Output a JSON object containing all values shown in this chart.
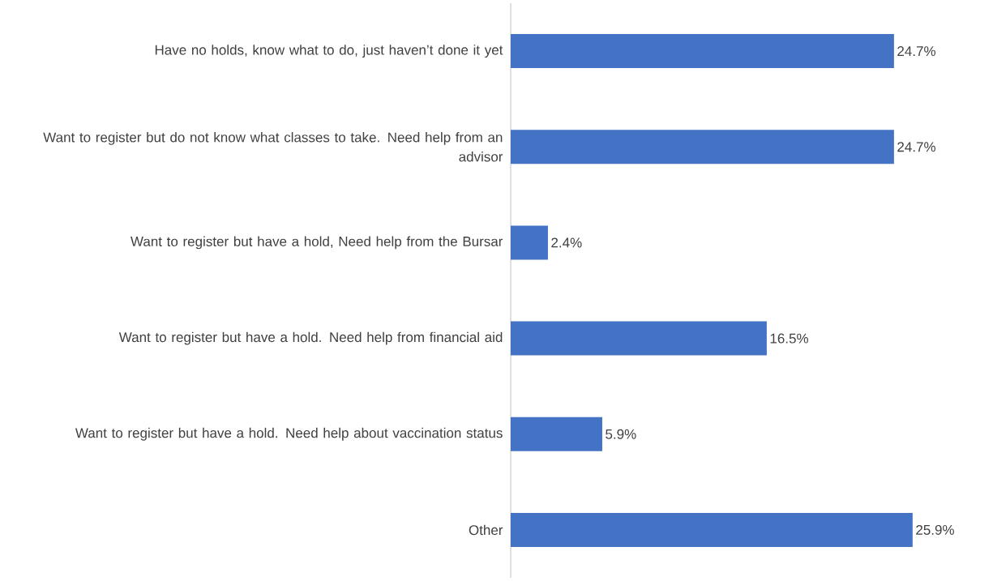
{
  "chart_data": {
    "type": "bar",
    "orientation": "horizontal",
    "categories": [
      "Have no holds, know what to do, just haven’t done it yet",
      "Want to register but do not know what classes to take. Need help from an advisor",
      "Want to register but have a hold, Need help from the Bursar",
      "Want to register but have a hold. Need help from financial aid",
      "Want to register but have a hold. Need help about vaccination status",
      "Other"
    ],
    "values": [
      24.7,
      24.7,
      2.4,
      16.5,
      5.9,
      25.9
    ],
    "value_labels": [
      "24.7%",
      "24.7%",
      "2.4%",
      "16.5%",
      "5.9%",
      "25.9%"
    ],
    "color": "#4472c4"
  }
}
